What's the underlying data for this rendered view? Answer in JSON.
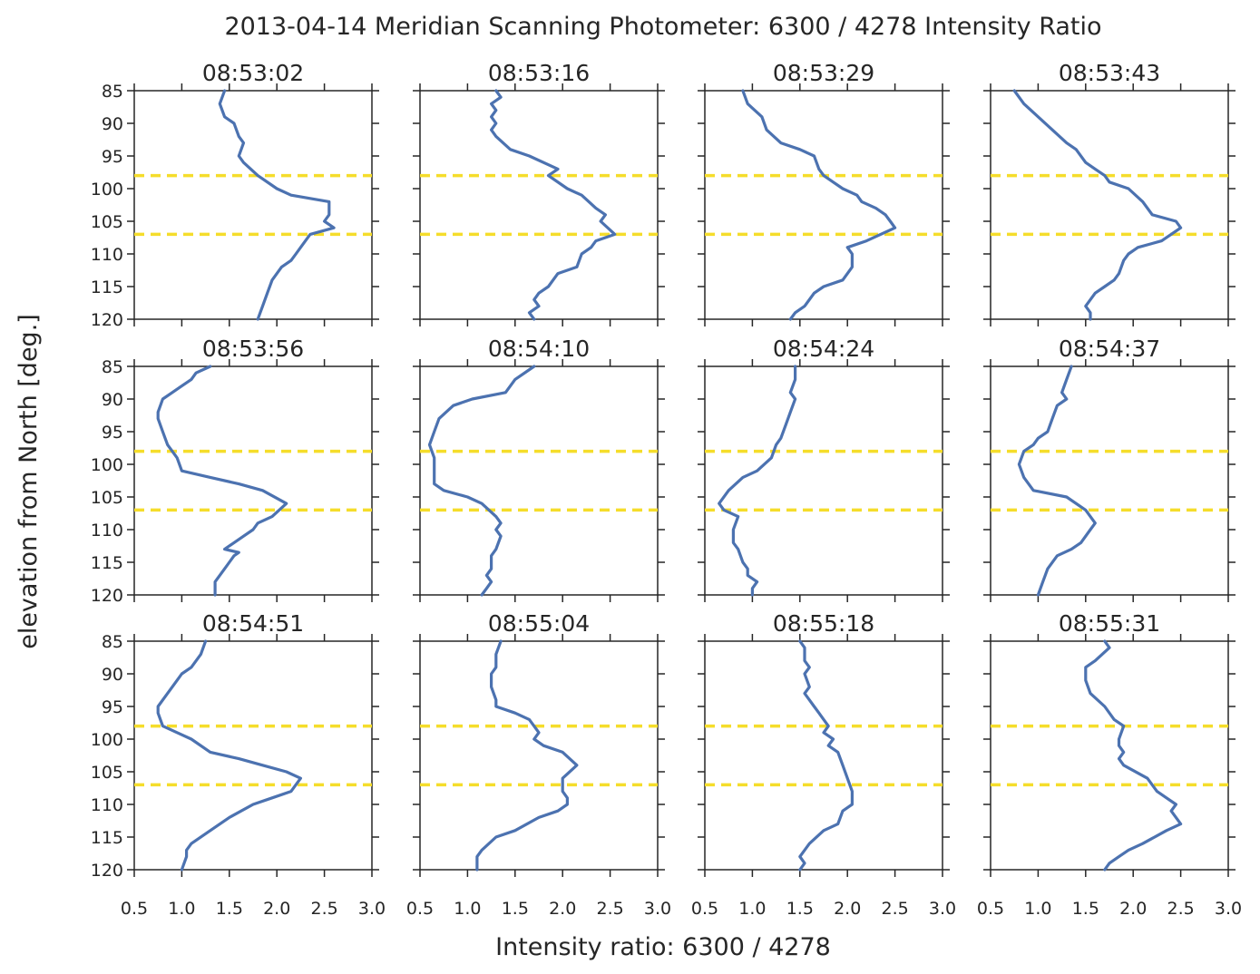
{
  "chart_data": {
    "type": "line",
    "title": "2013-04-14  Meridian Scanning Photometer: 6300 / 4278 Intensity Ratio",
    "xlabel": "Intensity ratio: 6300 / 4278",
    "ylabel": "elevation from North [deg.]",
    "xlim": [
      0.5,
      3.0
    ],
    "ylim": [
      85,
      120
    ],
    "y_inverted": true,
    "xticks": [
      "0.5",
      "1.0",
      "1.5",
      "2.0",
      "2.5",
      "3.0"
    ],
    "yticks": [
      "85",
      "90",
      "95",
      "100",
      "105",
      "110",
      "115",
      "120"
    ],
    "grid": false,
    "layout_rows": 3,
    "layout_cols": 4,
    "reference_lines_y": [
      98,
      107
    ],
    "colors": {
      "series": "#4c72b0",
      "reference": "#f5dd2b",
      "axis": "#262626"
    },
    "panels": [
      {
        "title": "08:53:02",
        "points": [
          [
            1.45,
            85
          ],
          [
            1.4,
            87
          ],
          [
            1.45,
            89
          ],
          [
            1.55,
            90
          ],
          [
            1.6,
            92
          ],
          [
            1.65,
            93
          ],
          [
            1.6,
            95
          ],
          [
            1.65,
            96
          ],
          [
            1.8,
            98
          ],
          [
            2.0,
            100
          ],
          [
            2.15,
            101
          ],
          [
            2.55,
            102
          ],
          [
            2.55,
            104
          ],
          [
            2.5,
            105
          ],
          [
            2.6,
            106
          ],
          [
            2.35,
            107
          ],
          [
            2.25,
            109
          ],
          [
            2.2,
            110
          ],
          [
            2.15,
            111
          ],
          [
            2.05,
            112
          ],
          [
            1.95,
            114
          ],
          [
            1.9,
            116
          ],
          [
            1.85,
            118
          ],
          [
            1.8,
            120
          ]
        ]
      },
      {
        "title": "08:53:16",
        "points": [
          [
            1.3,
            85
          ],
          [
            1.35,
            86
          ],
          [
            1.25,
            87
          ],
          [
            1.3,
            88
          ],
          [
            1.25,
            89
          ],
          [
            1.3,
            90
          ],
          [
            1.25,
            91
          ],
          [
            1.3,
            92
          ],
          [
            1.45,
            94
          ],
          [
            1.65,
            95
          ],
          [
            1.95,
            97
          ],
          [
            1.85,
            98
          ],
          [
            2.05,
            100
          ],
          [
            2.2,
            101
          ],
          [
            2.35,
            103
          ],
          [
            2.45,
            104
          ],
          [
            2.4,
            105
          ],
          [
            2.55,
            107
          ],
          [
            2.35,
            108
          ],
          [
            2.3,
            109
          ],
          [
            2.2,
            110
          ],
          [
            2.15,
            112
          ],
          [
            1.95,
            113
          ],
          [
            1.85,
            115
          ],
          [
            1.75,
            116
          ],
          [
            1.7,
            117
          ],
          [
            1.75,
            118
          ],
          [
            1.65,
            119
          ],
          [
            1.7,
            120
          ]
        ]
      },
      {
        "title": "08:53:29",
        "points": [
          [
            0.9,
            85
          ],
          [
            0.95,
            87
          ],
          [
            1.1,
            89
          ],
          [
            1.15,
            91
          ],
          [
            1.3,
            93
          ],
          [
            1.5,
            94
          ],
          [
            1.65,
            95
          ],
          [
            1.7,
            97
          ],
          [
            1.75,
            98
          ],
          [
            1.85,
            99
          ],
          [
            1.95,
            100
          ],
          [
            2.1,
            101
          ],
          [
            2.15,
            102
          ],
          [
            2.3,
            103
          ],
          [
            2.4,
            104
          ],
          [
            2.45,
            105
          ],
          [
            2.5,
            106
          ],
          [
            2.2,
            108
          ],
          [
            2.0,
            109
          ],
          [
            2.05,
            110
          ],
          [
            2.05,
            112
          ],
          [
            1.95,
            114
          ],
          [
            1.75,
            115
          ],
          [
            1.65,
            116
          ],
          [
            1.55,
            118
          ],
          [
            1.45,
            119
          ],
          [
            1.4,
            120
          ]
        ]
      },
      {
        "title": "08:53:43",
        "points": [
          [
            0.75,
            85
          ],
          [
            0.85,
            87
          ],
          [
            1.0,
            89
          ],
          [
            1.15,
            91
          ],
          [
            1.3,
            93
          ],
          [
            1.4,
            94
          ],
          [
            1.5,
            96
          ],
          [
            1.6,
            97
          ],
          [
            1.7,
            98
          ],
          [
            1.75,
            99
          ],
          [
            1.95,
            100
          ],
          [
            2.1,
            102
          ],
          [
            2.2,
            104
          ],
          [
            2.45,
            105
          ],
          [
            2.5,
            106
          ],
          [
            2.3,
            108
          ],
          [
            2.05,
            109
          ],
          [
            1.95,
            110
          ],
          [
            1.9,
            111
          ],
          [
            1.85,
            113
          ],
          [
            1.8,
            114
          ],
          [
            1.7,
            115
          ],
          [
            1.6,
            116
          ],
          [
            1.55,
            117
          ],
          [
            1.5,
            118
          ],
          [
            1.55,
            119
          ],
          [
            1.55,
            120
          ]
        ]
      },
      {
        "title": "08:53:56",
        "points": [
          [
            1.3,
            85
          ],
          [
            1.15,
            86
          ],
          [
            1.1,
            87
          ],
          [
            1.0,
            88
          ],
          [
            0.9,
            89
          ],
          [
            0.8,
            90
          ],
          [
            0.75,
            92
          ],
          [
            0.75,
            93
          ],
          [
            0.8,
            95
          ],
          [
            0.85,
            97
          ],
          [
            0.95,
            99
          ],
          [
            1.0,
            101
          ],
          [
            1.3,
            102
          ],
          [
            1.6,
            103
          ],
          [
            1.85,
            104
          ],
          [
            2.1,
            106
          ],
          [
            1.95,
            108
          ],
          [
            1.8,
            109
          ],
          [
            1.75,
            110
          ],
          [
            1.65,
            111
          ],
          [
            1.55,
            112
          ],
          [
            1.45,
            113
          ],
          [
            1.6,
            113.5
          ],
          [
            1.55,
            114
          ],
          [
            1.5,
            115
          ],
          [
            1.45,
            116
          ],
          [
            1.4,
            117
          ],
          [
            1.35,
            118
          ],
          [
            1.35,
            120
          ]
        ]
      },
      {
        "title": "08:54:10",
        "points": [
          [
            1.7,
            85
          ],
          [
            1.5,
            87
          ],
          [
            1.4,
            89
          ],
          [
            1.05,
            90
          ],
          [
            0.85,
            91
          ],
          [
            0.7,
            93
          ],
          [
            0.65,
            95
          ],
          [
            0.6,
            97
          ],
          [
            0.65,
            99
          ],
          [
            0.65,
            101
          ],
          [
            0.65,
            103
          ],
          [
            0.75,
            104
          ],
          [
            1.0,
            105
          ],
          [
            1.15,
            106
          ],
          [
            1.3,
            108
          ],
          [
            1.35,
            109
          ],
          [
            1.3,
            110
          ],
          [
            1.35,
            111
          ],
          [
            1.3,
            113
          ],
          [
            1.25,
            114
          ],
          [
            1.25,
            116
          ],
          [
            1.2,
            117
          ],
          [
            1.25,
            118
          ],
          [
            1.2,
            119
          ],
          [
            1.15,
            120
          ]
        ]
      },
      {
        "title": "08:54:24",
        "points": [
          [
            1.45,
            85
          ],
          [
            1.45,
            87
          ],
          [
            1.4,
            89
          ],
          [
            1.45,
            90
          ],
          [
            1.4,
            92
          ],
          [
            1.35,
            94
          ],
          [
            1.3,
            96
          ],
          [
            1.25,
            97
          ],
          [
            1.2,
            99
          ],
          [
            1.05,
            101
          ],
          [
            0.9,
            102
          ],
          [
            0.75,
            104
          ],
          [
            0.65,
            106
          ],
          [
            0.7,
            107
          ],
          [
            0.85,
            108
          ],
          [
            0.8,
            110
          ],
          [
            0.8,
            112
          ],
          [
            0.85,
            113
          ],
          [
            0.9,
            115
          ],
          [
            0.95,
            116
          ],
          [
            0.95,
            117
          ],
          [
            1.05,
            118
          ],
          [
            1.0,
            119
          ],
          [
            1.0,
            120
          ]
        ]
      },
      {
        "title": "08:54:37",
        "points": [
          [
            1.35,
            85
          ],
          [
            1.3,
            87
          ],
          [
            1.25,
            89
          ],
          [
            1.3,
            90
          ],
          [
            1.2,
            91
          ],
          [
            1.15,
            93
          ],
          [
            1.1,
            95
          ],
          [
            1.0,
            96
          ],
          [
            0.95,
            97
          ],
          [
            0.85,
            98
          ],
          [
            0.8,
            100
          ],
          [
            0.85,
            102
          ],
          [
            0.95,
            104
          ],
          [
            1.3,
            105
          ],
          [
            1.5,
            107
          ],
          [
            1.6,
            109
          ],
          [
            1.55,
            110
          ],
          [
            1.45,
            112
          ],
          [
            1.35,
            113
          ],
          [
            1.2,
            114
          ],
          [
            1.1,
            116
          ],
          [
            1.05,
            118
          ],
          [
            1.0,
            120
          ]
        ]
      },
      {
        "title": "08:54:51",
        "points": [
          [
            1.25,
            85
          ],
          [
            1.2,
            87
          ],
          [
            1.1,
            89
          ],
          [
            1.0,
            90
          ],
          [
            0.95,
            91
          ],
          [
            0.85,
            93
          ],
          [
            0.75,
            95
          ],
          [
            0.75,
            96
          ],
          [
            0.8,
            98
          ],
          [
            0.95,
            99
          ],
          [
            1.1,
            100
          ],
          [
            1.3,
            102
          ],
          [
            1.6,
            103
          ],
          [
            1.85,
            104
          ],
          [
            2.1,
            105
          ],
          [
            2.25,
            106
          ],
          [
            2.15,
            108
          ],
          [
            1.95,
            109
          ],
          [
            1.75,
            110
          ],
          [
            1.5,
            112
          ],
          [
            1.3,
            114
          ],
          [
            1.1,
            116
          ],
          [
            1.05,
            117
          ],
          [
            1.05,
            118
          ],
          [
            1.0,
            120
          ]
        ]
      },
      {
        "title": "08:55:04",
        "points": [
          [
            1.35,
            85
          ],
          [
            1.3,
            87
          ],
          [
            1.3,
            89
          ],
          [
            1.25,
            90
          ],
          [
            1.25,
            92
          ],
          [
            1.3,
            94
          ],
          [
            1.3,
            95
          ],
          [
            1.5,
            96
          ],
          [
            1.65,
            97
          ],
          [
            1.75,
            99
          ],
          [
            1.7,
            100
          ],
          [
            1.8,
            101
          ],
          [
            2.0,
            102
          ],
          [
            2.15,
            104
          ],
          [
            2.0,
            106
          ],
          [
            2.0,
            108
          ],
          [
            2.05,
            109
          ],
          [
            2.05,
            110
          ],
          [
            1.95,
            111
          ],
          [
            1.75,
            112
          ],
          [
            1.5,
            114
          ],
          [
            1.3,
            115
          ],
          [
            1.15,
            117
          ],
          [
            1.1,
            118
          ],
          [
            1.1,
            120
          ]
        ]
      },
      {
        "title": "08:55:18",
        "points": [
          [
            1.5,
            85
          ],
          [
            1.55,
            86
          ],
          [
            1.55,
            88
          ],
          [
            1.6,
            89
          ],
          [
            1.55,
            90
          ],
          [
            1.6,
            92
          ],
          [
            1.55,
            93
          ],
          [
            1.65,
            95
          ],
          [
            1.7,
            96
          ],
          [
            1.75,
            97
          ],
          [
            1.8,
            98
          ],
          [
            1.75,
            99
          ],
          [
            1.85,
            100
          ],
          [
            1.8,
            101
          ],
          [
            1.9,
            102
          ],
          [
            1.95,
            104
          ],
          [
            2.0,
            106
          ],
          [
            2.05,
            108
          ],
          [
            2.05,
            110
          ],
          [
            1.95,
            111
          ],
          [
            1.9,
            113
          ],
          [
            1.75,
            114
          ],
          [
            1.6,
            116
          ],
          [
            1.55,
            117
          ],
          [
            1.5,
            118
          ],
          [
            1.55,
            119
          ],
          [
            1.5,
            120
          ]
        ]
      },
      {
        "title": "08:55:31",
        "points": [
          [
            1.7,
            85
          ],
          [
            1.75,
            86
          ],
          [
            1.6,
            88
          ],
          [
            1.5,
            89
          ],
          [
            1.5,
            91
          ],
          [
            1.55,
            93
          ],
          [
            1.7,
            95
          ],
          [
            1.8,
            97
          ],
          [
            1.9,
            98
          ],
          [
            1.85,
            100
          ],
          [
            1.85,
            101
          ],
          [
            1.9,
            102
          ],
          [
            1.85,
            103
          ],
          [
            1.9,
            104
          ],
          [
            2.15,
            106
          ],
          [
            2.25,
            108
          ],
          [
            2.35,
            109
          ],
          [
            2.45,
            110
          ],
          [
            2.4,
            111
          ],
          [
            2.45,
            112
          ],
          [
            2.5,
            113
          ],
          [
            2.35,
            114
          ],
          [
            2.1,
            116
          ],
          [
            1.95,
            117
          ],
          [
            1.85,
            118
          ],
          [
            1.75,
            119
          ],
          [
            1.7,
            120
          ]
        ]
      }
    ]
  }
}
